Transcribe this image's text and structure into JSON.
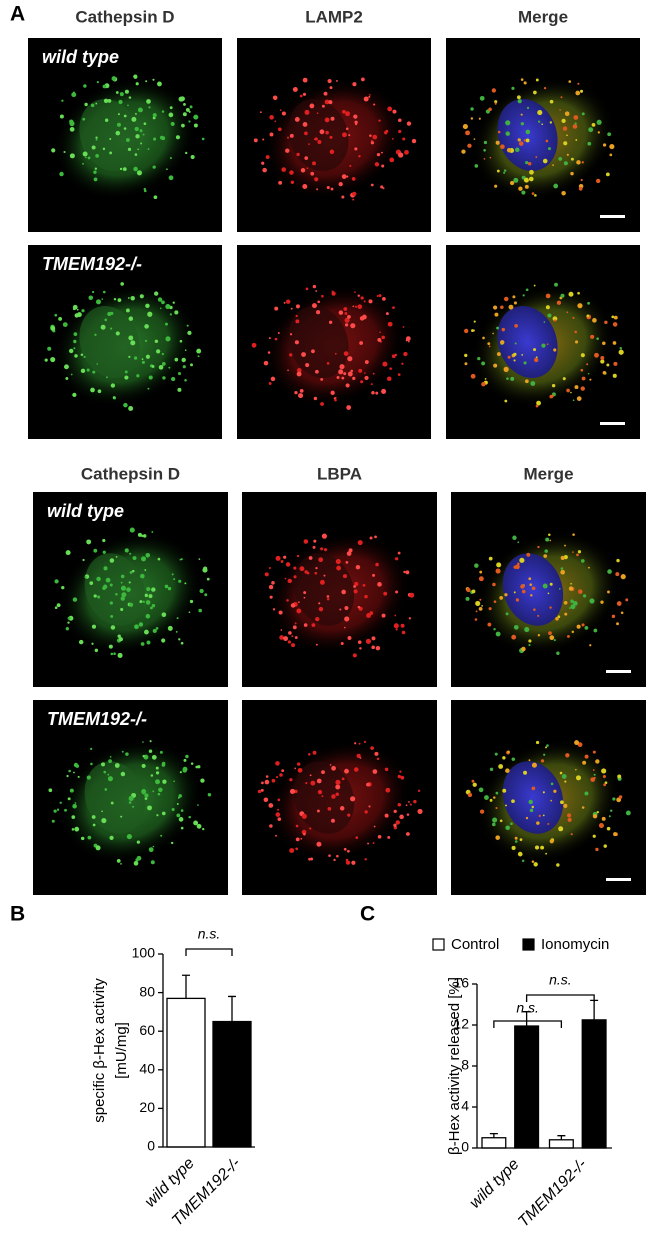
{
  "panel_a": {
    "panel_label": "A",
    "blocks": [
      {
        "columns": [
          "Cathepsin D",
          "LAMP2",
          "Merge"
        ],
        "rows": [
          "wild type",
          "TMEM192-/-"
        ]
      },
      {
        "columns": [
          "Cathepsin D",
          "LBPA",
          "Merge"
        ],
        "rows": [
          "wild type",
          "TMEM192-/-"
        ]
      }
    ]
  },
  "chart_data": [
    {
      "type": "bar",
      "panel_label": "B",
      "ylabel": [
        "specific β-Hex activity",
        "[mU/mg]"
      ],
      "categories": [
        "wild type",
        "TMEM192-/-"
      ],
      "values": [
        77,
        65
      ],
      "errors": [
        12,
        13
      ],
      "colors": [
        "#ffffff",
        "#000000"
      ],
      "ylim": [
        0,
        100
      ],
      "yticks": [
        0,
        20,
        40,
        60,
        80,
        100
      ],
      "annotations": [
        "n.s."
      ]
    },
    {
      "type": "grouped_bar",
      "panel_label": "C",
      "ylabel": [
        "β-Hex activity released [%]"
      ],
      "categories": [
        "wild type",
        "TMEM192-/-"
      ],
      "series": [
        {
          "name": "Control",
          "color": "#ffffff",
          "values": [
            1.0,
            0.8
          ],
          "errors": [
            0.4,
            0.4
          ]
        },
        {
          "name": "Ionomycin",
          "color": "#000000",
          "values": [
            11.9,
            12.5
          ],
          "errors": [
            1.4,
            1.9
          ]
        }
      ],
      "ylim": [
        0,
        16
      ],
      "yticks": [
        0,
        4,
        8,
        12,
        16
      ],
      "annotations": [
        "n.s.",
        "n.s."
      ]
    }
  ]
}
